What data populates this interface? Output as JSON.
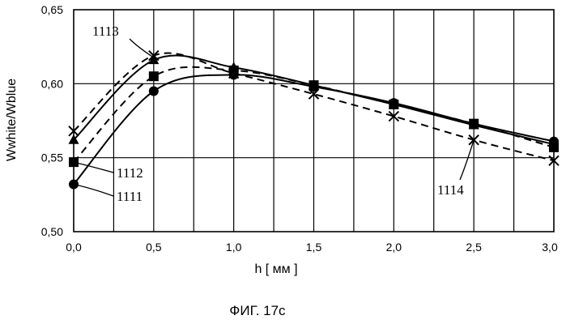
{
  "chart_data": {
    "type": "line",
    "xlabel": "h [ мм ]",
    "ylabel": "Wwhite/Wblue",
    "xlim": [
      0,
      3
    ],
    "ylim": [
      0.5,
      0.65
    ],
    "x_ticks": [
      "0,0",
      "0,5",
      "1,0",
      "1,5",
      "2,0",
      "2,5",
      "3,0"
    ],
    "y_ticks": [
      "0,50",
      "0,55",
      "0,60",
      "0,65"
    ],
    "grid": true,
    "series": [
      {
        "name": "1111",
        "marker": "circle",
        "dash": "solid",
        "x": [
          0,
          0.5,
          1.0,
          1.5,
          2.0,
          2.5,
          3.0
        ],
        "y": [
          0.532,
          0.595,
          0.606,
          0.598,
          0.587,
          0.573,
          0.561
        ]
      },
      {
        "name": "1112",
        "marker": "square",
        "dash": "dashed",
        "x": [
          0,
          0.5,
          1.0,
          1.5,
          2.0,
          2.5,
          3.0
        ],
        "y": [
          0.547,
          0.605,
          0.609,
          0.599,
          0.586,
          0.573,
          0.557
        ]
      },
      {
        "name": "1113",
        "marker": "triangle",
        "dash": "solid",
        "x": [
          0,
          0.5,
          1.0,
          1.5,
          2.0,
          2.5,
          3.0
        ],
        "y": [
          0.562,
          0.616,
          0.611,
          0.599,
          0.586,
          0.572,
          0.559
        ]
      },
      {
        "name": "1114",
        "marker": "cross",
        "dash": "dashed",
        "x": [
          0,
          0.5,
          1.0,
          1.5,
          2.0,
          2.5,
          3.0
        ],
        "y": [
          0.568,
          0.619,
          0.607,
          0.593,
          0.578,
          0.562,
          0.548
        ]
      }
    ]
  },
  "caption": "ФИГ. 17с"
}
